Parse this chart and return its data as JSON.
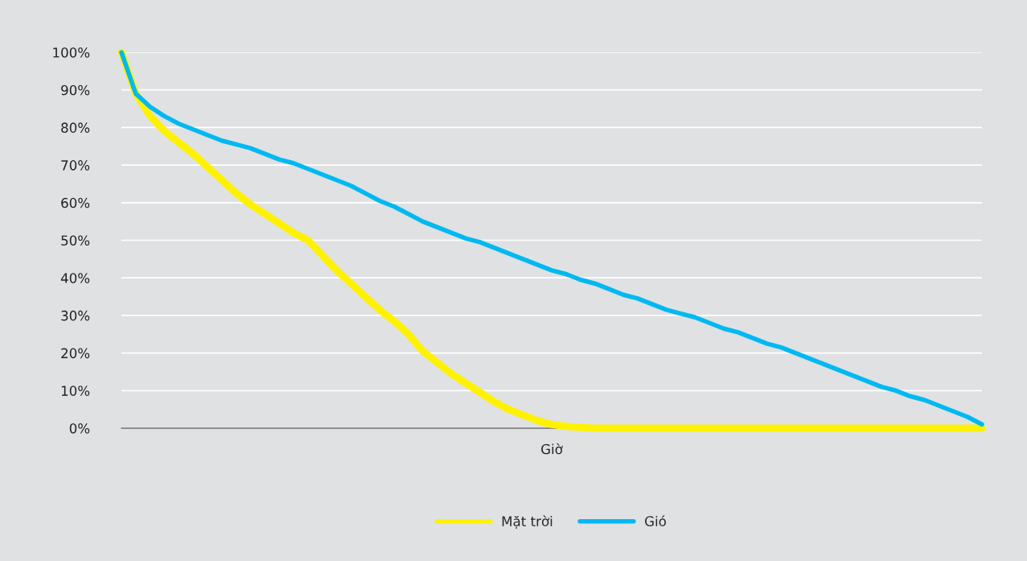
{
  "chart_data": {
    "type": "line",
    "xlabel": "Giờ",
    "categories": [
      null,
      null,
      null,
      null,
      null,
      null,
      null,
      null,
      null,
      null,
      null,
      null,
      null,
      null,
      null,
      null,
      null,
      null,
      null,
      null,
      null,
      null,
      null,
      null,
      null,
      null,
      null,
      null,
      null,
      null,
      null,
      null,
      null,
      null,
      null,
      null,
      null,
      null,
      null,
      null,
      null,
      null,
      null,
      null,
      null,
      null,
      null,
      null,
      null,
      null,
      null,
      null,
      null,
      null,
      null,
      null,
      null,
      null,
      null,
      null,
      null
    ],
    "series": [
      {
        "name": "Mặt trời",
        "color": "#fff200",
        "values": [
          100,
          89,
          83,
          79,
          76,
          73,
          69.5,
          66,
          62.5,
          59.5,
          57,
          54.5,
          52,
          50,
          46,
          42,
          38.5,
          35,
          31.5,
          28.5,
          25,
          20.5,
          17.5,
          14.5,
          12,
          9.5,
          7,
          5,
          3.5,
          2,
          1,
          0.5,
          0.2,
          0,
          0,
          0,
          0,
          0,
          0,
          0,
          0,
          0,
          0,
          0,
          0,
          0,
          0,
          0,
          0,
          0,
          0,
          0,
          0,
          0,
          0,
          0,
          0,
          0,
          0,
          0,
          0
        ]
      },
      {
        "name": "Gió",
        "color": "#00b9f1",
        "values": [
          100,
          89,
          85.5,
          83,
          81,
          79.5,
          78,
          76.5,
          75.5,
          74.5,
          73,
          71.5,
          70.5,
          69,
          67.5,
          66,
          64.5,
          62.5,
          60.5,
          59,
          57,
          55,
          53.5,
          52,
          50.5,
          49.5,
          48,
          46.5,
          45,
          43.5,
          42,
          41,
          39.5,
          38.5,
          37,
          35.5,
          34.5,
          33,
          31.5,
          30.5,
          29.5,
          28,
          26.5,
          25.5,
          24,
          22.5,
          21.5,
          20,
          18.5,
          17,
          15.5,
          14,
          12.5,
          11,
          10,
          8.5,
          7.5,
          6,
          4.5,
          3,
          1
        ]
      }
    ],
    "ylim": [
      0,
      100
    ],
    "yticks": [
      {
        "value": 0,
        "label": "0%"
      },
      {
        "value": 10,
        "label": "10%"
      },
      {
        "value": 20,
        "label": "20%"
      },
      {
        "value": 30,
        "label": "30%"
      },
      {
        "value": 40,
        "label": "40%"
      },
      {
        "value": 50,
        "label": "50%"
      },
      {
        "value": 60,
        "label": "60%"
      },
      {
        "value": 70,
        "label": "70%"
      },
      {
        "value": 80,
        "label": "80%"
      },
      {
        "value": 90,
        "label": "90%"
      },
      {
        "value": 100,
        "label": "100%"
      }
    ],
    "grid": "y",
    "legend": "bottom",
    "tick_labels": "y"
  }
}
